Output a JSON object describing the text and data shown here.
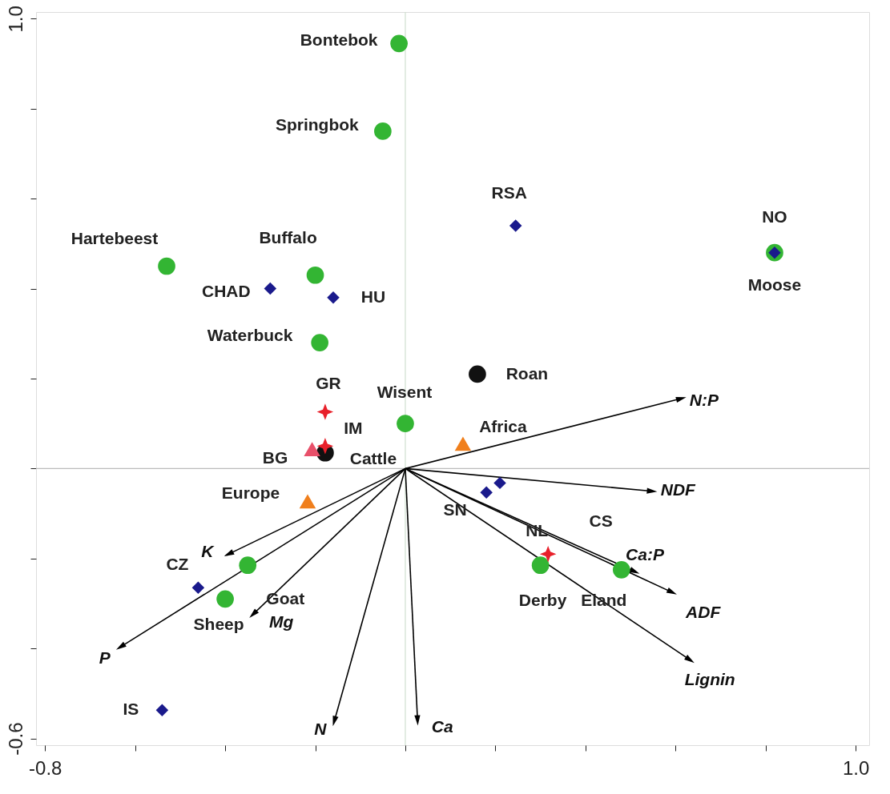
{
  "chart_data": {
    "type": "scatter",
    "xlim": [
      -0.82,
      1.03
    ],
    "ylim": [
      -0.615,
      1.015
    ],
    "xticks": [
      -0.8,
      {
        "value": -0.6,
        "label": null
      },
      {
        "value": -0.4,
        "label": null
      },
      {
        "value": -0.2,
        "label": null
      },
      {
        "value": 0,
        "label": null
      },
      {
        "value": 0.2,
        "label": null
      },
      {
        "value": 0.4,
        "label": null
      },
      {
        "value": 0.6,
        "label": null
      },
      {
        "value": 0.8,
        "label": null
      },
      {
        "value": 1.0,
        "label": "1.0"
      }
    ],
    "yticks": [
      {
        "value": -0.6,
        "label": "-0.6"
      },
      {
        "value": -0.4,
        "label": null
      },
      {
        "value": -0.2,
        "label": null
      },
      {
        "value": 0,
        "label": null
      },
      {
        "value": 0.2,
        "label": null
      },
      {
        "value": 0.4,
        "label": null
      },
      {
        "value": 0.6,
        "label": null
      },
      {
        "value": 0.8,
        "label": null
      },
      {
        "value": 1.0,
        "label": "1.0"
      }
    ],
    "grid": false,
    "ref_lines": [
      {
        "axis": "x",
        "value": 0,
        "color": "#cfe0cf"
      },
      {
        "axis": "y",
        "value": 0,
        "color": "#bbbbbb"
      }
    ],
    "series": [
      {
        "type": "line",
        "name": "N:P",
        "color": "#000000",
        "x": [
          0,
          0.61
        ],
        "values": [
          0,
          0.155
        ]
      },
      {
        "type": "line",
        "name": "NDF",
        "color": "#000000",
        "x": [
          0,
          0.545
        ],
        "values": [
          0,
          -0.05
        ]
      },
      {
        "type": "line",
        "name": "Ca:P",
        "color": "#000000",
        "x": [
          0,
          0.507
        ],
        "values": [
          0,
          -0.228
        ]
      },
      {
        "type": "line",
        "name": "ADF",
        "color": "#000000",
        "x": [
          0,
          0.59
        ],
        "values": [
          0,
          -0.274
        ]
      },
      {
        "type": "line",
        "name": "Lignin",
        "color": "#000000",
        "x": [
          0,
          0.63
        ],
        "values": [
          0,
          -0.424
        ]
      },
      {
        "type": "line",
        "name": "Ca",
        "color": "#000000",
        "x": [
          0,
          0.027
        ],
        "values": [
          0,
          -0.557
        ]
      },
      {
        "type": "line",
        "name": "N",
        "color": "#000000",
        "x": [
          0,
          -0.157
        ],
        "values": [
          0,
          -0.559
        ]
      },
      {
        "type": "line",
        "name": "Mg",
        "color": "#000000",
        "x": [
          0,
          -0.336
        ],
        "values": [
          0,
          -0.322
        ]
      },
      {
        "type": "line",
        "name": "K",
        "color": "#000000",
        "x": [
          0,
          -0.39
        ],
        "values": [
          0,
          -0.189
        ]
      },
      {
        "type": "line",
        "name": "P",
        "color": "#000000",
        "x": [
          0,
          -0.63
        ],
        "values": [
          0,
          -0.395
        ]
      },
      {
        "marker": "circle",
        "color": "#33b533",
        "x": [
          -0.014,
          -0.05,
          -0.53,
          -0.2,
          -0.19,
          0.0,
          0.82,
          0.3,
          0.48,
          -0.35,
          -0.4
        ],
        "values": [
          0.945,
          0.75,
          0.45,
          0.43,
          0.28,
          0.1,
          0.48,
          -0.215,
          -0.225,
          -0.215,
          -0.29
        ]
      },
      {
        "marker": "circle",
        "color": "#111111",
        "x": [
          0.16,
          -0.178
        ],
        "values": [
          0.21,
          0.035
        ]
      },
      {
        "marker": "triangle",
        "color": "#f07f1c",
        "x": [
          0.128,
          -0.217
        ],
        "values": [
          0.055,
          -0.073
        ]
      },
      {
        "marker": "triangle",
        "color": "#e8506a",
        "x": [
          -0.207
        ],
        "values": [
          0.043
        ]
      },
      {
        "marker": "star",
        "color": "#e8202a",
        "x": [
          -0.178,
          -0.178,
          0.317
        ],
        "values": [
          0.126,
          0.05,
          -0.19
        ]
      },
      {
        "marker": "diamond",
        "color": "#1a1a8c",
        "x": [
          0.245,
          0.82,
          -0.3,
          -0.16,
          0.18,
          0.21,
          -0.46,
          -0.54
        ],
        "values": [
          0.54,
          0.48,
          0.4,
          0.38,
          -0.053,
          -0.032,
          -0.265,
          -0.537
        ]
      }
    ],
    "annotations": [
      {
        "text": "Bontebok",
        "x": -0.014,
        "y": 0.945
      },
      {
        "text": "Springbok",
        "x": -0.05,
        "y": 0.75
      },
      {
        "text": "Hartebeest",
        "x": -0.53,
        "y": 0.45
      },
      {
        "text": "Buffalo",
        "x": -0.2,
        "y": 0.43
      },
      {
        "text": "CHAD",
        "x": -0.3,
        "y": 0.4
      },
      {
        "text": "HU",
        "x": -0.16,
        "y": 0.38
      },
      {
        "text": "Waterbuck",
        "x": -0.19,
        "y": 0.28
      },
      {
        "text": "RSA",
        "x": 0.245,
        "y": 0.54
      },
      {
        "text": "NO",
        "x": 0.82,
        "y": 0.48
      },
      {
        "text": "Moose",
        "x": 0.82,
        "y": 0.48
      },
      {
        "text": "Roan",
        "x": 0.16,
        "y": 0.21
      },
      {
        "text": "GR",
        "x": -0.178,
        "y": 0.126
      },
      {
        "text": "Wisent",
        "x": 0.0,
        "y": 0.1
      },
      {
        "text": "IM",
        "x": -0.178,
        "y": 0.05
      },
      {
        "text": "Africa",
        "x": 0.128,
        "y": 0.055
      },
      {
        "text": "BG",
        "x": -0.207,
        "y": 0.043
      },
      {
        "text": "Cattle",
        "x": -0.178,
        "y": 0.035
      },
      {
        "text": "Europe",
        "x": -0.217,
        "y": -0.073
      },
      {
        "text": "SN",
        "x": 0.18,
        "y": -0.053
      },
      {
        "text": "NL",
        "x": 0.317,
        "y": -0.19
      },
      {
        "text": "CS",
        "x": 0.317,
        "y": -0.19
      },
      {
        "text": "CZ",
        "x": -0.46,
        "y": -0.265
      },
      {
        "text": "Goat",
        "x": -0.35,
        "y": -0.215
      },
      {
        "text": "Sheep",
        "x": -0.4,
        "y": -0.29
      },
      {
        "text": "Derby",
        "x": 0.3,
        "y": -0.215
      },
      {
        "text": "Eland",
        "x": 0.48,
        "y": -0.225
      },
      {
        "text": "IS",
        "x": -0.54,
        "y": -0.537
      }
    ]
  }
}
